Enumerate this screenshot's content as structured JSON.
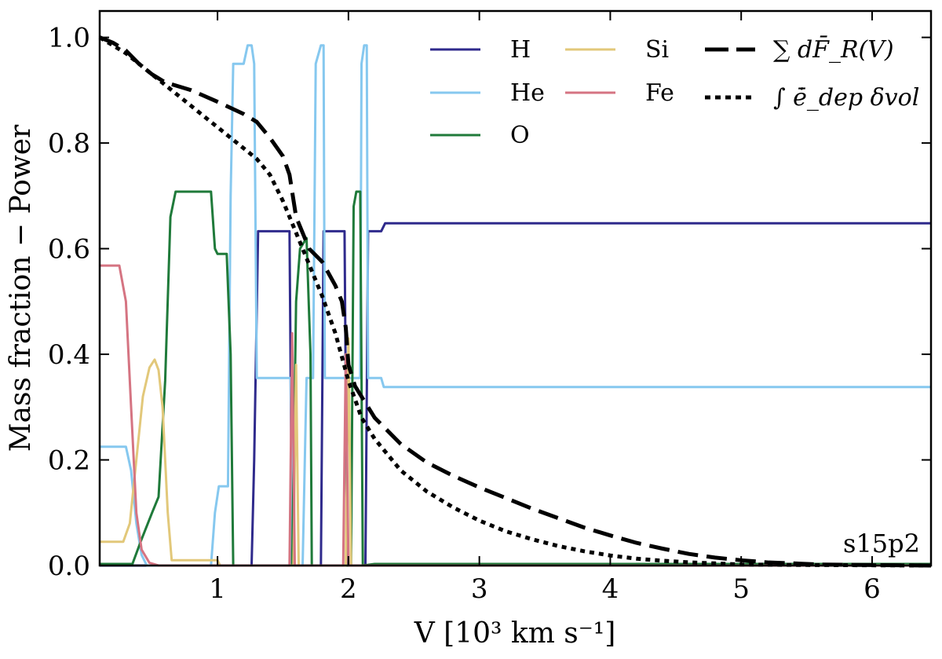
{
  "chart_data": {
    "type": "line",
    "title": "",
    "xlabel": "V [10³ km s⁻¹]",
    "ylabel": "Mass fraction − Power",
    "xlim": [
      0.1,
      6.45
    ],
    "ylim": [
      0.0,
      1.05
    ],
    "x_ticks": [
      1,
      2,
      3,
      4,
      5,
      6
    ],
    "x_tick_labels": [
      "1",
      "2",
      "3",
      "4",
      "5",
      "6"
    ],
    "y_ticks": [
      0.0,
      0.2,
      0.4,
      0.6,
      0.8,
      1.0
    ],
    "y_tick_labels": [
      "0.0",
      "0.2",
      "0.4",
      "0.6",
      "0.8",
      "1.0"
    ],
    "annotation": "s15p2",
    "legend_position": "top-right",
    "series": [
      {
        "name": "H",
        "color": "#2f2a8c",
        "dash": "solid",
        "points": [
          [
            0.1,
            0.0
          ],
          [
            1.26,
            0.0
          ],
          [
            1.28,
            0.2
          ],
          [
            1.31,
            0.633
          ],
          [
            1.55,
            0.633
          ],
          [
            1.57,
            0.0
          ],
          [
            1.79,
            0.0
          ],
          [
            1.81,
            0.633
          ],
          [
            1.97,
            0.633
          ],
          [
            1.99,
            0.0
          ],
          [
            2.13,
            0.0
          ],
          [
            2.15,
            0.633
          ],
          [
            2.25,
            0.633
          ],
          [
            2.28,
            0.648
          ],
          [
            6.45,
            0.648
          ]
        ]
      },
      {
        "name": "He",
        "color": "#86c8ef",
        "dash": "solid",
        "points": [
          [
            0.1,
            0.225
          ],
          [
            0.3,
            0.225
          ],
          [
            0.34,
            0.18
          ],
          [
            0.38,
            0.08
          ],
          [
            0.42,
            0.02
          ],
          [
            0.46,
            0.0
          ],
          [
            0.95,
            0.0
          ],
          [
            0.98,
            0.1
          ],
          [
            1.01,
            0.15
          ],
          [
            1.08,
            0.15
          ],
          [
            1.1,
            0.7
          ],
          [
            1.12,
            0.95
          ],
          [
            1.2,
            0.95
          ],
          [
            1.23,
            0.985
          ],
          [
            1.26,
            0.985
          ],
          [
            1.28,
            0.95
          ],
          [
            1.3,
            0.355
          ],
          [
            1.56,
            0.355
          ],
          [
            1.57,
            0.0
          ],
          [
            1.65,
            0.0
          ],
          [
            1.68,
            0.355
          ],
          [
            1.73,
            0.355
          ],
          [
            1.75,
            0.95
          ],
          [
            1.79,
            0.985
          ],
          [
            1.81,
            0.985
          ],
          [
            1.82,
            0.355
          ],
          [
            2.09,
            0.355
          ],
          [
            2.1,
            0.95
          ],
          [
            2.12,
            0.985
          ],
          [
            2.14,
            0.985
          ],
          [
            2.15,
            0.355
          ],
          [
            2.25,
            0.355
          ],
          [
            2.27,
            0.338
          ],
          [
            6.45,
            0.338
          ]
        ]
      },
      {
        "name": "O",
        "color": "#1f7a3a",
        "dash": "solid",
        "points": [
          [
            0.1,
            0.003
          ],
          [
            0.35,
            0.003
          ],
          [
            0.42,
            0.05
          ],
          [
            0.5,
            0.1
          ],
          [
            0.55,
            0.13
          ],
          [
            0.6,
            0.35
          ],
          [
            0.64,
            0.66
          ],
          [
            0.68,
            0.708
          ],
          [
            0.95,
            0.708
          ],
          [
            0.98,
            0.6
          ],
          [
            1.0,
            0.59
          ],
          [
            1.07,
            0.59
          ],
          [
            1.1,
            0.4
          ],
          [
            1.12,
            0.0
          ],
          [
            1.57,
            0.0
          ],
          [
            1.6,
            0.5
          ],
          [
            1.63,
            0.6
          ],
          [
            1.68,
            0.62
          ],
          [
            1.71,
            0.4
          ],
          [
            1.72,
            0.0
          ],
          [
            2.02,
            0.0
          ],
          [
            2.04,
            0.68
          ],
          [
            2.06,
            0.708
          ],
          [
            2.09,
            0.708
          ],
          [
            2.11,
            0.0
          ],
          [
            2.2,
            0.003
          ],
          [
            6.45,
            0.003
          ]
        ]
      },
      {
        "name": "Si",
        "color": "#e2c87a",
        "dash": "solid",
        "points": [
          [
            0.1,
            0.045
          ],
          [
            0.28,
            0.045
          ],
          [
            0.33,
            0.08
          ],
          [
            0.38,
            0.2
          ],
          [
            0.43,
            0.32
          ],
          [
            0.48,
            0.375
          ],
          [
            0.52,
            0.39
          ],
          [
            0.55,
            0.37
          ],
          [
            0.58,
            0.3
          ],
          [
            0.62,
            0.1
          ],
          [
            0.65,
            0.01
          ],
          [
            0.7,
            0.01
          ],
          [
            1.0,
            0.01
          ],
          [
            1.02,
            0.0
          ],
          [
            1.58,
            0.0
          ],
          [
            1.6,
            0.38
          ],
          [
            1.62,
            0.0
          ],
          [
            1.98,
            0.0
          ],
          [
            2.0,
            0.43
          ],
          [
            2.02,
            0.0
          ],
          [
            6.45,
            0.0
          ]
        ]
      },
      {
        "name": "Fe",
        "color": "#d57482",
        "dash": "solid",
        "points": [
          [
            0.1,
            0.568
          ],
          [
            0.25,
            0.568
          ],
          [
            0.3,
            0.5
          ],
          [
            0.34,
            0.3
          ],
          [
            0.38,
            0.1
          ],
          [
            0.42,
            0.03
          ],
          [
            0.48,
            0.005
          ],
          [
            0.55,
            0.0
          ],
          [
            1.55,
            0.0
          ],
          [
            1.57,
            0.44
          ],
          [
            1.59,
            0.0
          ],
          [
            1.96,
            0.0
          ],
          [
            1.98,
            0.4
          ],
          [
            2.0,
            0.0
          ],
          [
            6.45,
            0.0
          ]
        ]
      },
      {
        "name": "∑ dF̄_R(V)",
        "color": "#000000",
        "dash": "long-dash",
        "points": [
          [
            0.1,
            1.0
          ],
          [
            0.2,
            0.99
          ],
          [
            0.3,
            0.975
          ],
          [
            0.4,
            0.95
          ],
          [
            0.5,
            0.93
          ],
          [
            0.6,
            0.915
          ],
          [
            0.8,
            0.9
          ],
          [
            1.0,
            0.878
          ],
          [
            1.2,
            0.855
          ],
          [
            1.3,
            0.84
          ],
          [
            1.4,
            0.81
          ],
          [
            1.5,
            0.775
          ],
          [
            1.55,
            0.74
          ],
          [
            1.6,
            0.66
          ],
          [
            1.7,
            0.6
          ],
          [
            1.8,
            0.575
          ],
          [
            1.9,
            0.53
          ],
          [
            1.95,
            0.5
          ],
          [
            1.98,
            0.45
          ],
          [
            2.0,
            0.38
          ],
          [
            2.05,
            0.34
          ],
          [
            2.1,
            0.32
          ],
          [
            2.2,
            0.28
          ],
          [
            2.4,
            0.23
          ],
          [
            2.6,
            0.195
          ],
          [
            2.8,
            0.17
          ],
          [
            3.0,
            0.148
          ],
          [
            3.2,
            0.128
          ],
          [
            3.4,
            0.108
          ],
          [
            3.6,
            0.09
          ],
          [
            3.8,
            0.072
          ],
          [
            4.0,
            0.057
          ],
          [
            4.2,
            0.043
          ],
          [
            4.4,
            0.032
          ],
          [
            4.6,
            0.022
          ],
          [
            4.8,
            0.015
          ],
          [
            5.0,
            0.01
          ],
          [
            5.2,
            0.006
          ],
          [
            5.4,
            0.004
          ],
          [
            5.6,
            0.002
          ],
          [
            5.9,
            0.001
          ],
          [
            6.45,
            0.0
          ]
        ]
      },
      {
        "name": "∫ ē̇_dep δvol",
        "color": "#000000",
        "dash": "dotted",
        "points": [
          [
            0.1,
            1.0
          ],
          [
            0.3,
            0.97
          ],
          [
            0.5,
            0.93
          ],
          [
            0.7,
            0.89
          ],
          [
            0.9,
            0.85
          ],
          [
            1.1,
            0.81
          ],
          [
            1.3,
            0.77
          ],
          [
            1.4,
            0.74
          ],
          [
            1.5,
            0.69
          ],
          [
            1.6,
            0.63
          ],
          [
            1.7,
            0.57
          ],
          [
            1.8,
            0.51
          ],
          [
            1.9,
            0.44
          ],
          [
            2.0,
            0.35
          ],
          [
            2.1,
            0.28
          ],
          [
            2.2,
            0.24
          ],
          [
            2.4,
            0.18
          ],
          [
            2.6,
            0.14
          ],
          [
            2.8,
            0.11
          ],
          [
            3.0,
            0.085
          ],
          [
            3.2,
            0.065
          ],
          [
            3.4,
            0.05
          ],
          [
            3.6,
            0.037
          ],
          [
            3.8,
            0.027
          ],
          [
            4.0,
            0.019
          ],
          [
            4.2,
            0.013
          ],
          [
            4.4,
            0.009
          ],
          [
            4.6,
            0.006
          ],
          [
            4.8,
            0.004
          ],
          [
            5.0,
            0.002
          ],
          [
            5.5,
            0.001
          ],
          [
            6.45,
            0.0
          ]
        ]
      }
    ]
  }
}
